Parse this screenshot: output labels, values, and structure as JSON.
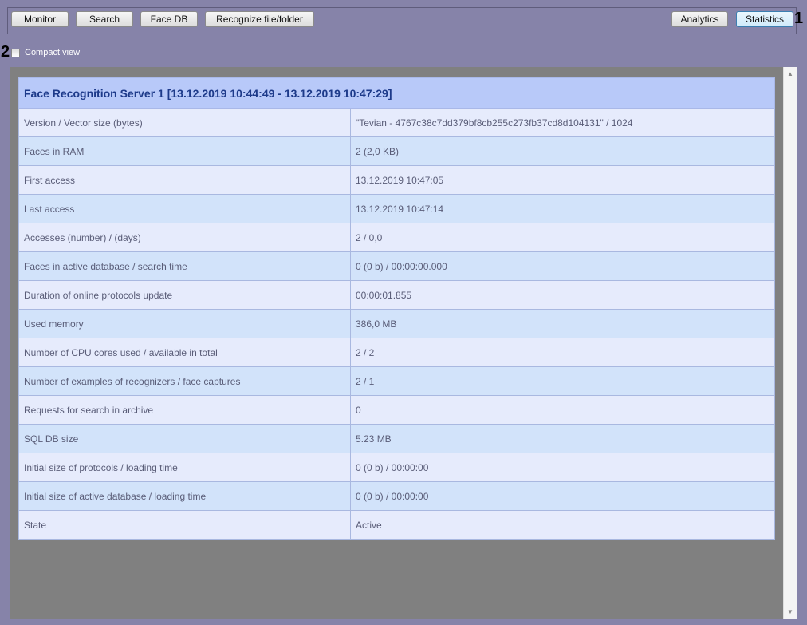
{
  "toolbar": {
    "monitor": "Monitor",
    "search": "Search",
    "face_db": "Face DB",
    "recognize": "Recognize file/folder",
    "analytics": "Analytics",
    "statistics": "Statistics"
  },
  "markers": {
    "m1": "1",
    "m2": "2"
  },
  "compact_view": {
    "label": "Compact view",
    "checked": false
  },
  "table": {
    "title": "Face Recognition Server 1 [13.12.2019 10:44:49 - 13.12.2019 10:47:29]",
    "rows": [
      [
        "Version / Vector size (bytes)",
        "\"Tevian - 4767c38c7dd379bf8cb255c273fb37cd8d104131\" / 1024"
      ],
      [
        "Faces in RAM",
        "2 (2,0 KB)"
      ],
      [
        "First access",
        "13.12.2019 10:47:05"
      ],
      [
        "Last access",
        "13.12.2019 10:47:14"
      ],
      [
        "Accesses (number) / (days)",
        "2 / 0,0"
      ],
      [
        "Faces in active database / search time",
        "0 (0 b) / 00:00:00.000"
      ],
      [
        "Duration of online protocols update",
        "00:00:01.855"
      ],
      [
        "Used memory",
        "386,0 MB"
      ],
      [
        "Number of CPU cores used / available in total",
        "2 / 2"
      ],
      [
        "Number of examples of recognizers / face captures",
        "2 / 1"
      ],
      [
        "Requests for search in archive",
        "0"
      ],
      [
        "SQL DB size",
        "5.23 MB"
      ],
      [
        "Initial size of protocols / loading time",
        "0 (0 b) / 00:00:00"
      ],
      [
        "Initial size of active database / loading time",
        "0 (0 b) / 00:00:00"
      ],
      [
        "State",
        "Active"
      ]
    ]
  }
}
